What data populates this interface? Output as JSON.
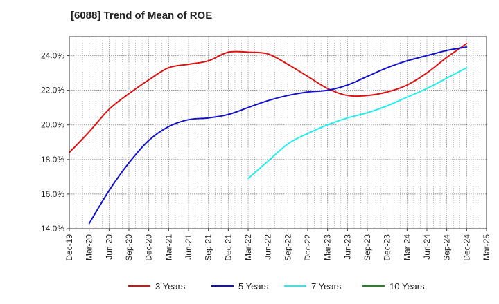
{
  "chart_data": {
    "type": "line",
    "title": "[6088]  Trend of Mean of ROE",
    "xlabel": "",
    "ylabel": "",
    "x_ticks": [
      "Dec-19",
      "Mar-20",
      "Jun-20",
      "Sep-20",
      "Dec-20",
      "Mar-21",
      "Jun-21",
      "Sep-21",
      "Dec-21",
      "Mar-22",
      "Jun-22",
      "Sep-22",
      "Dec-22",
      "Mar-23",
      "Jun-23",
      "Sep-23",
      "Dec-23",
      "Mar-24",
      "Jun-24",
      "Sep-24",
      "Dec-24",
      "Mar-25"
    ],
    "y_ticks": [
      14.0,
      16.0,
      18.0,
      20.0,
      22.0,
      24.0
    ],
    "y_tick_labels": [
      "14.0%",
      "16.0%",
      "18.0%",
      "20.0%",
      "22.0%",
      "24.0%"
    ],
    "ylim": [
      14.0,
      25.1
    ],
    "grid": true,
    "legend_position": "bottom",
    "series": [
      {
        "name": "3 Years",
        "color": "#dd1111",
        "x": [
          "Dec-19",
          "Mar-20",
          "Jun-20",
          "Sep-20",
          "Dec-20",
          "Mar-21",
          "Jun-21",
          "Sep-21",
          "Dec-21",
          "Mar-22",
          "Jun-22",
          "Sep-22",
          "Dec-22",
          "Mar-23",
          "Jun-23",
          "Sep-23",
          "Dec-23",
          "Mar-24",
          "Jun-24",
          "Sep-24",
          "Dec-24"
        ],
        "values": [
          18.4,
          19.6,
          20.9,
          21.8,
          22.6,
          23.3,
          23.5,
          23.7,
          24.2,
          24.2,
          24.1,
          23.5,
          22.8,
          22.1,
          21.7,
          21.7,
          21.9,
          22.3,
          23.0,
          23.9,
          24.7
        ]
      },
      {
        "name": "5 Years",
        "color": "#1111cc",
        "x": [
          "Mar-20",
          "Jun-20",
          "Sep-20",
          "Dec-20",
          "Mar-21",
          "Jun-21",
          "Sep-21",
          "Dec-21",
          "Mar-22",
          "Jun-22",
          "Sep-22",
          "Dec-22",
          "Mar-23",
          "Jun-23",
          "Sep-23",
          "Dec-23",
          "Mar-24",
          "Jun-24",
          "Sep-24",
          "Dec-24"
        ],
        "values": [
          14.3,
          16.2,
          17.8,
          19.1,
          19.9,
          20.3,
          20.4,
          20.6,
          21.0,
          21.4,
          21.7,
          21.9,
          22.0,
          22.3,
          22.8,
          23.3,
          23.7,
          24.0,
          24.3,
          24.5
        ]
      },
      {
        "name": "7 Years",
        "color": "#22eeee",
        "x": [
          "Mar-22",
          "Jun-22",
          "Sep-22",
          "Dec-22",
          "Mar-23",
          "Jun-23",
          "Sep-23",
          "Dec-23",
          "Mar-24",
          "Jun-24",
          "Sep-24",
          "Dec-24"
        ],
        "values": [
          16.9,
          17.9,
          18.9,
          19.5,
          20.0,
          20.4,
          20.7,
          21.1,
          21.6,
          22.1,
          22.7,
          23.3
        ]
      },
      {
        "name": "10 Years",
        "color": "#228822",
        "x": [],
        "values": []
      }
    ]
  }
}
